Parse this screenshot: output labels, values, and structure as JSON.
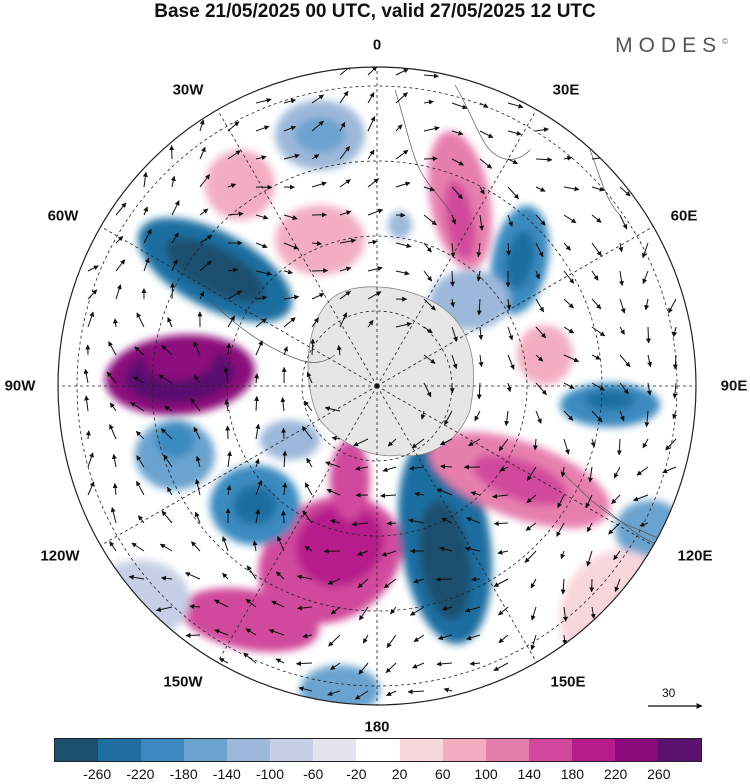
{
  "header": {
    "title": "Base 21/05/2025 00 UTC, valid 27/05/2025 12 UTC",
    "brand": "MODES",
    "brand_mark": "©"
  },
  "map": {
    "projection": "south-polar-stereographic",
    "longitude_labels": [
      {
        "id": "lon-0",
        "text": "0"
      },
      {
        "id": "lon-30e",
        "text": "30E"
      },
      {
        "id": "lon-60e",
        "text": "60E"
      },
      {
        "id": "lon-90e",
        "text": "90E"
      },
      {
        "id": "lon-120e",
        "text": "120E"
      },
      {
        "id": "lon-150e",
        "text": "150E"
      },
      {
        "id": "lon-180",
        "text": "180"
      },
      {
        "id": "lon-150w",
        "text": "150W"
      },
      {
        "id": "lon-120w",
        "text": "120W"
      },
      {
        "id": "lon-90w",
        "text": "90W"
      },
      {
        "id": "lon-60w",
        "text": "60W"
      },
      {
        "id": "lon-30w",
        "text": "30W"
      }
    ],
    "reference_vector_label": "30"
  },
  "colorbar": {
    "ticks": [
      "-260",
      "-220",
      "-180",
      "-140",
      "-100",
      "-60",
      "-20",
      "20",
      "60",
      "100",
      "140",
      "180",
      "220",
      "260"
    ],
    "colors": [
      "#1d4f6e",
      "#1f6ea1",
      "#3a8ac0",
      "#6aa3cf",
      "#9db8da",
      "#c6cfe5",
      "#e4e4ef",
      "#ffffff",
      "#f8d7dc",
      "#f2aec0",
      "#e77fae",
      "#d1489c",
      "#b61c8c",
      "#8c0a7c",
      "#5a1170"
    ]
  }
}
